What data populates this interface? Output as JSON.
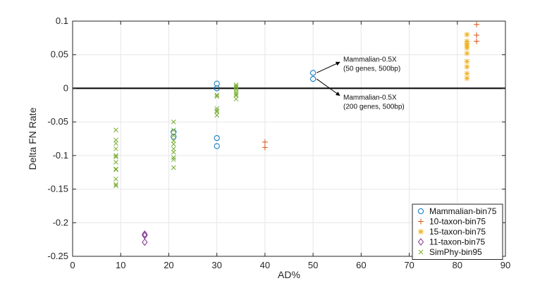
{
  "chart_data": {
    "type": "scatter",
    "title": "",
    "xlabel": "AD%",
    "ylabel": "Delta FN Rate",
    "xlim": [
      0,
      90
    ],
    "ylim": [
      -0.25,
      0.1
    ],
    "xticks": [
      0,
      10,
      20,
      30,
      40,
      50,
      60,
      70,
      80,
      90
    ],
    "yticks": [
      -0.25,
      -0.2,
      -0.15,
      -0.1,
      -0.05,
      0,
      0.05,
      0.1
    ],
    "ytick_labels": [
      "-0.25",
      "-0.2",
      "-0.15",
      "-0.1",
      "-0.05",
      "0",
      "0.05",
      "0.1"
    ],
    "grid": true,
    "zero_line": 0,
    "legend_position": "bottom-right",
    "series": [
      {
        "name": "Mammalian-bin75",
        "marker": "circle",
        "color": "#0072BD",
        "points": [
          [
            21,
            -0.065
          ],
          [
            21,
            -0.072
          ],
          [
            30,
            0.007
          ],
          [
            30,
            0.0
          ],
          [
            30,
            -0.074
          ],
          [
            30,
            -0.086
          ],
          [
            50,
            0.023
          ],
          [
            50,
            0.014
          ]
        ]
      },
      {
        "name": "10-taxon-bin75",
        "marker": "plus",
        "color": "#D95319",
        "points": [
          [
            40,
            -0.08
          ],
          [
            40,
            -0.088
          ],
          [
            84,
            0.095
          ],
          [
            84,
            0.079
          ],
          [
            84,
            0.07
          ]
        ]
      },
      {
        "name": "15-taxon-bin75",
        "marker": "star",
        "color": "#EDB120",
        "points": [
          [
            82,
            0.08
          ],
          [
            82,
            0.07
          ],
          [
            82,
            0.066
          ],
          [
            82,
            0.063
          ],
          [
            82,
            0.06
          ],
          [
            82,
            0.052
          ],
          [
            82,
            0.04
          ],
          [
            82,
            0.032
          ],
          [
            82,
            0.022
          ],
          [
            82,
            0.015
          ]
        ]
      },
      {
        "name": "11-taxon-bin75",
        "marker": "diamond",
        "color": "#7E2F8E",
        "points": [
          [
            15,
            -0.217
          ],
          [
            15,
            -0.219
          ],
          [
            15,
            -0.229
          ]
        ]
      },
      {
        "name": "SimPhy-bin95",
        "marker": "x",
        "color": "#77AC30",
        "points": [
          [
            9,
            -0.062
          ],
          [
            9,
            -0.077
          ],
          [
            9,
            -0.082
          ],
          [
            9,
            -0.09
          ],
          [
            9,
            -0.1
          ],
          [
            9,
            -0.102
          ],
          [
            9,
            -0.11
          ],
          [
            9,
            -0.12
          ],
          [
            9,
            -0.121
          ],
          [
            9,
            -0.135
          ],
          [
            9,
            -0.143
          ],
          [
            9,
            -0.145
          ],
          [
            21,
            -0.05
          ],
          [
            21,
            -0.062
          ],
          [
            21,
            -0.07
          ],
          [
            21,
            -0.078
          ],
          [
            21,
            -0.083
          ],
          [
            21,
            -0.09
          ],
          [
            21,
            -0.095
          ],
          [
            21,
            -0.103
          ],
          [
            21,
            -0.106
          ],
          [
            21,
            -0.118
          ],
          [
            30,
            -0.01
          ],
          [
            30,
            -0.012
          ],
          [
            30,
            -0.03
          ],
          [
            30,
            -0.033
          ],
          [
            30,
            -0.035
          ],
          [
            30,
            -0.04
          ],
          [
            34,
            0.005
          ],
          [
            34,
            0.003
          ],
          [
            34,
            0.001
          ],
          [
            34,
            -0.002
          ],
          [
            34,
            -0.006
          ],
          [
            34,
            -0.009
          ],
          [
            34,
            -0.011
          ],
          [
            34,
            -0.016
          ]
        ]
      }
    ],
    "annotations": [
      {
        "point": [
          50,
          0.023
        ],
        "text": [
          "Mammalian-0.5X",
          "(50 genes, 500bp)"
        ],
        "text_anchor": [
          56,
          0.04
        ]
      },
      {
        "point": [
          50,
          0.014
        ],
        "text": [
          "Mammalian-0.5X",
          "(200 genes, 500bp)"
        ],
        "text_anchor": [
          56,
          -0.017
        ]
      }
    ]
  }
}
